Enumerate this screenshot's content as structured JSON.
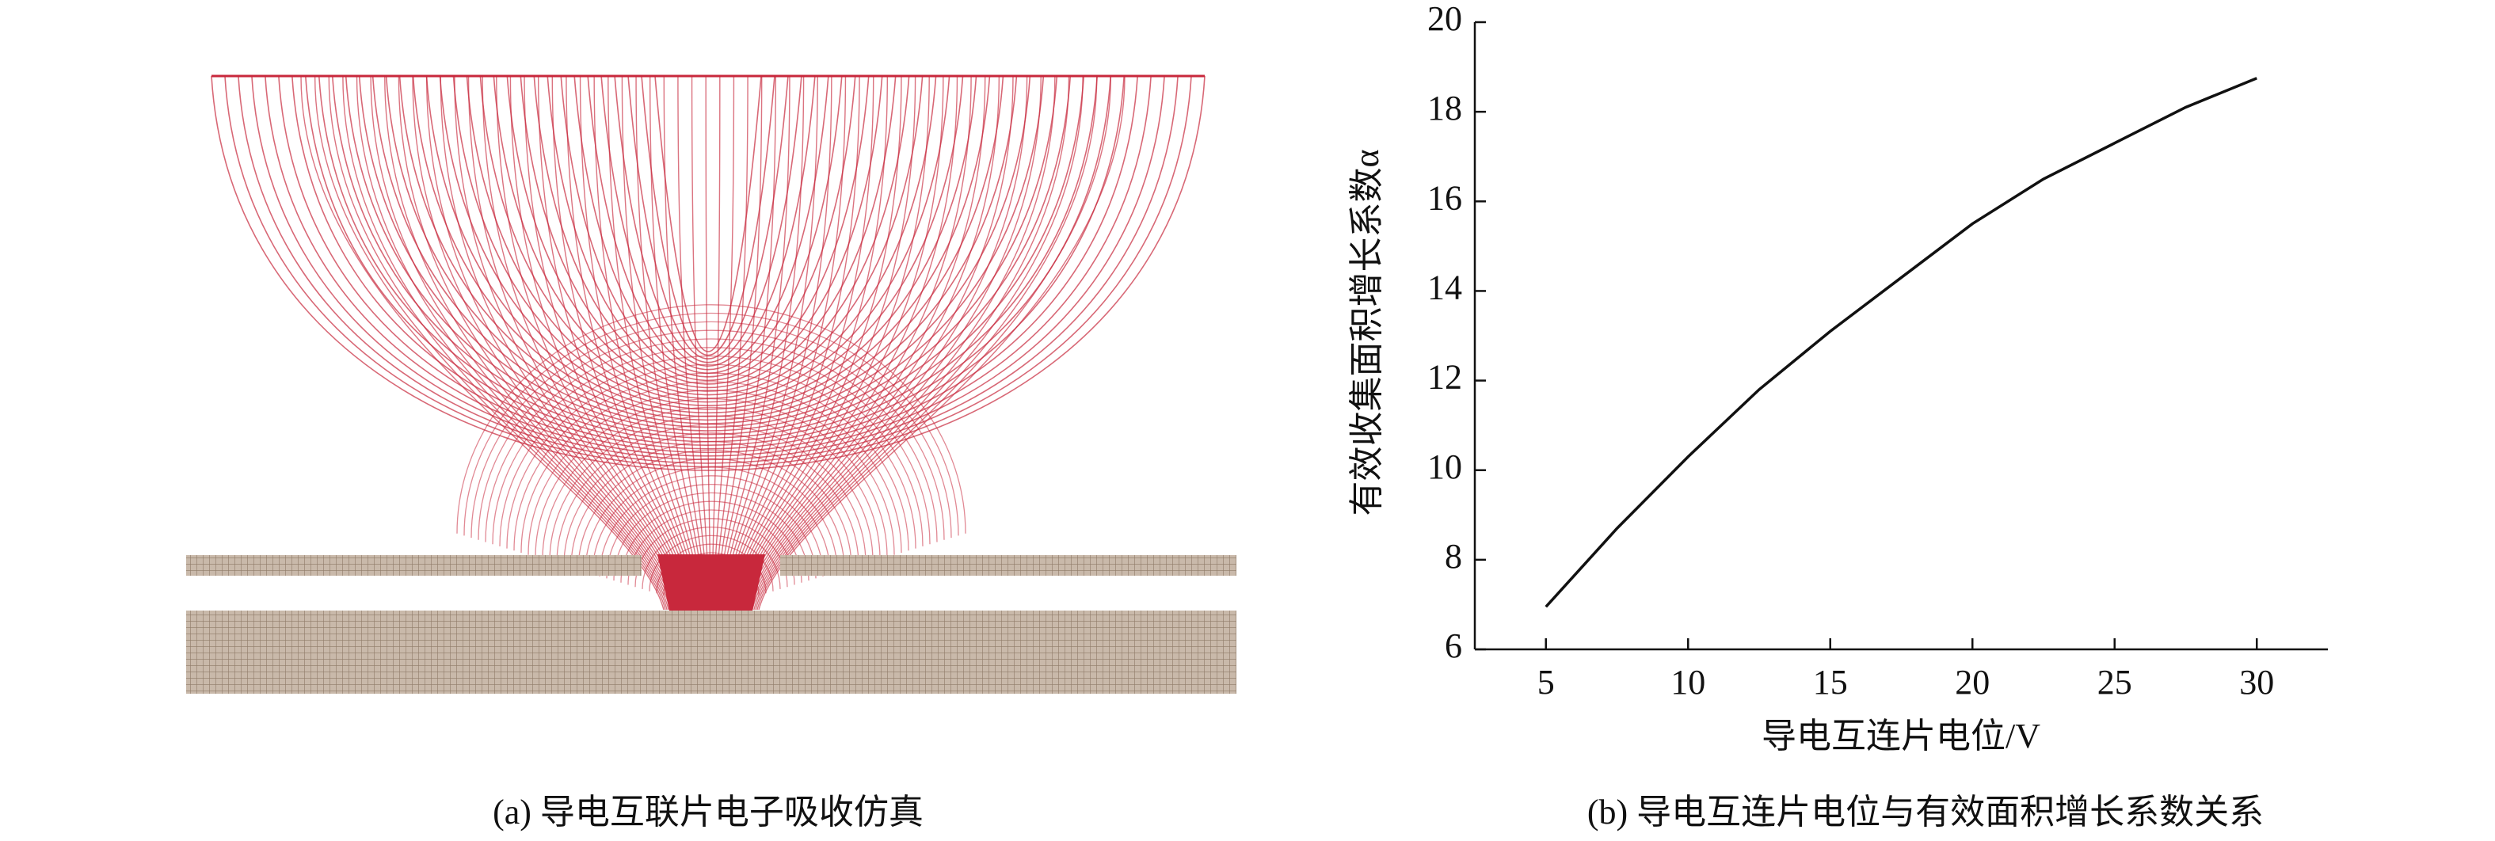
{
  "panels": [
    {
      "caption": "(a) 导电互联片电子吸收仿真"
    }
  ],
  "chart_data": {
    "type": "line",
    "caption": "(b) 导电互连片电位与有效面积增长系数关系",
    "x_label": "导电互连片电位/V",
    "y_label": "有效收集面积增长系数α",
    "x": [
      5,
      7.5,
      10,
      12.5,
      15,
      17.5,
      20,
      22.5,
      25,
      27.5,
      30
    ],
    "values": [
      6.95,
      8.7,
      10.3,
      11.8,
      13.1,
      14.3,
      15.5,
      16.5,
      17.3,
      18.1,
      18.75
    ],
    "color": "#111111",
    "xlim": [
      2.5,
      32.5
    ],
    "ylim": [
      6,
      20
    ],
    "xticks": [
      5,
      10,
      15,
      20,
      25,
      30
    ],
    "yticks": [
      6,
      8,
      10,
      12,
      14,
      16,
      18,
      20
    ]
  }
}
